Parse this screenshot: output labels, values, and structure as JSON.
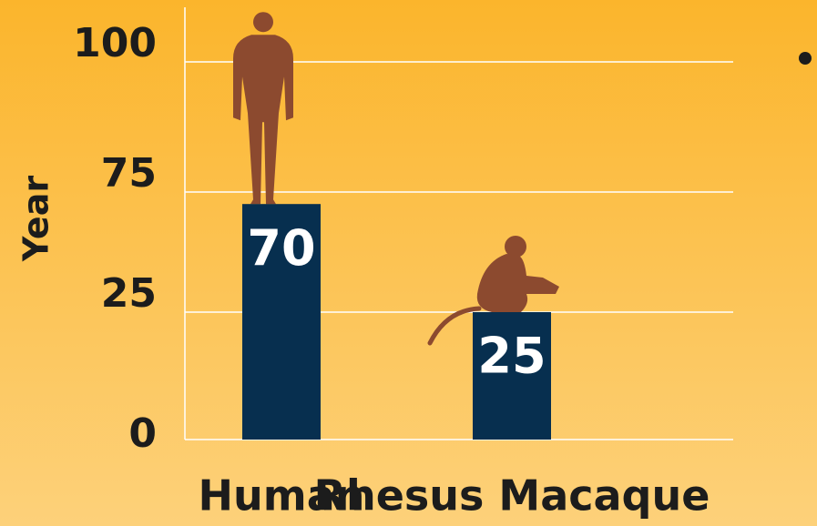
{
  "chart_data": {
    "type": "bar",
    "y_label": "Year",
    "categories": [
      "Human",
      "Rhesus Macaque"
    ],
    "values": [
      70,
      25
    ],
    "color": "#072f4f",
    "ylim": [
      0,
      100
    ],
    "yticks": [
      0,
      25,
      75,
      100
    ],
    "grid": true
  }
}
